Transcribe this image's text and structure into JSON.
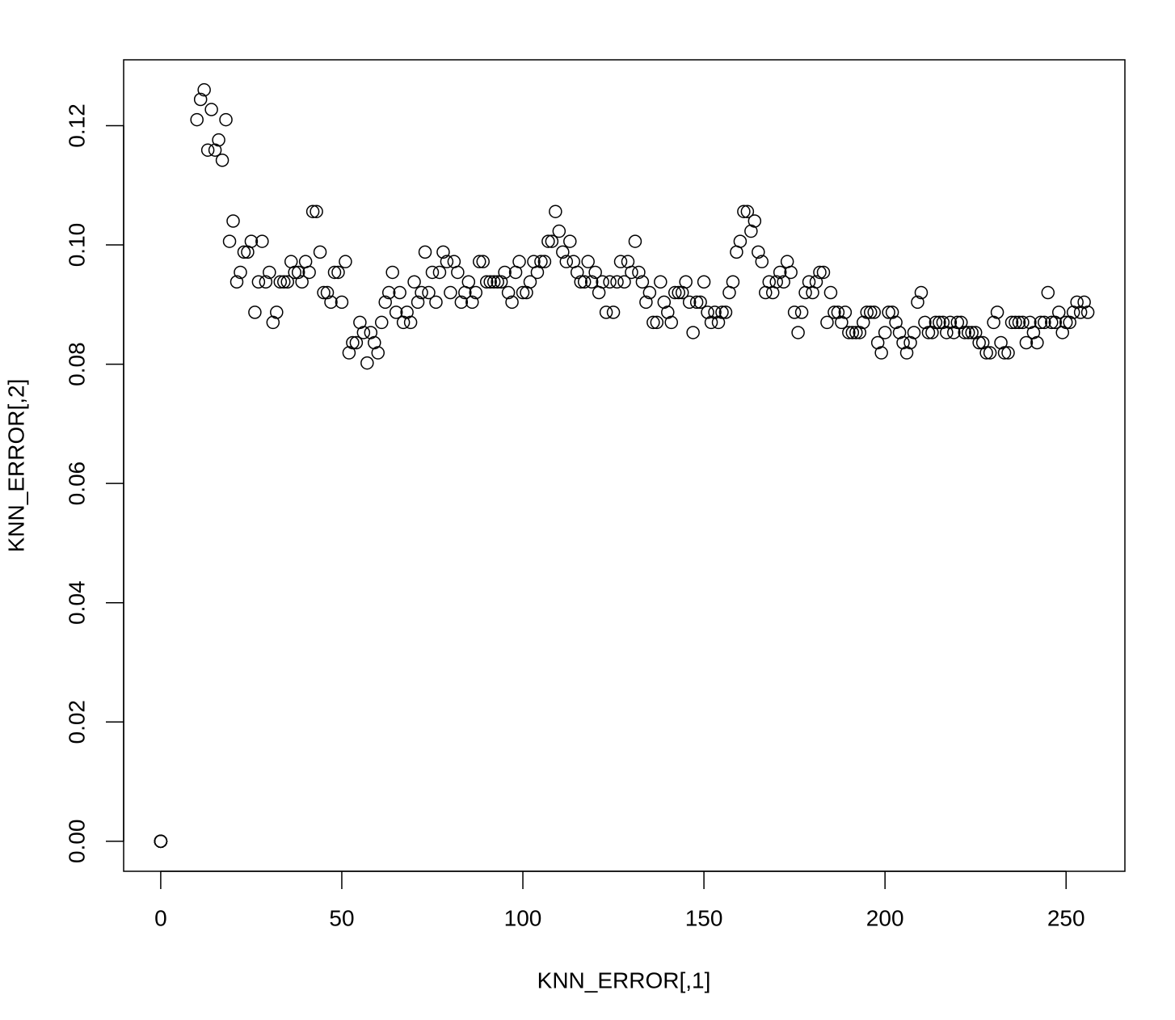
{
  "chart_data": {
    "type": "scatter",
    "x_label": "KNN_ERROR[,1]",
    "y_label": "KNN_ERROR[,2]",
    "color": "#000000",
    "marker": "open-circle",
    "xlim": [
      -10.24,
      266.24
    ],
    "ylim": [
      -0.00504,
      0.13104
    ],
    "xticks": [
      0,
      50,
      100,
      150,
      200,
      250
    ],
    "yticks": [
      {
        "value": 0,
        "label": "0.00"
      },
      0.02,
      0.04,
      0.06,
      0.08,
      {
        "value": 0.1,
        "label": "0.10"
      },
      0.12
    ],
    "x": [
      0,
      0,
      0,
      0,
      0,
      0,
      0,
      0,
      0,
      10,
      11,
      12,
      13,
      14,
      15,
      16,
      17,
      18,
      19,
      20,
      21,
      22,
      23,
      24,
      25,
      26,
      27,
      28,
      29,
      30,
      31,
      32,
      33,
      34,
      35,
      36,
      37,
      38,
      39,
      40,
      41,
      42,
      43,
      44,
      45,
      46,
      47,
      48,
      49,
      50,
      51,
      52,
      53,
      54,
      55,
      56,
      57,
      58,
      59,
      60,
      61,
      62,
      63,
      64,
      65,
      66,
      67,
      68,
      69,
      70,
      71,
      72,
      73,
      74,
      75,
      76,
      77,
      78,
      79,
      80,
      81,
      82,
      83,
      84,
      85,
      86,
      87,
      88,
      89,
      90,
      91,
      92,
      93,
      94,
      95,
      96,
      97,
      98,
      99,
      100,
      101,
      102,
      103,
      104,
      105,
      106,
      107,
      108,
      109,
      110,
      111,
      112,
      113,
      114,
      115,
      116,
      117,
      118,
      119,
      120,
      121,
      122,
      123,
      124,
      125,
      126,
      127,
      128,
      129,
      130,
      131,
      132,
      133,
      134,
      135,
      136,
      137,
      138,
      139,
      140,
      141,
      142,
      143,
      144,
      145,
      146,
      147,
      148,
      149,
      150,
      151,
      152,
      153,
      154,
      155,
      156,
      157,
      158,
      159,
      160,
      161,
      162,
      163,
      164,
      165,
      166,
      167,
      168,
      169,
      170,
      171,
      172,
      173,
      174,
      175,
      176,
      177,
      178,
      179,
      180,
      181,
      182,
      183,
      184,
      185,
      186,
      187,
      188,
      189,
      190,
      191,
      192,
      193,
      194,
      195,
      196,
      197,
      198,
      199,
      200,
      201,
      202,
      203,
      204,
      205,
      206,
      207,
      208,
      209,
      210,
      211,
      212,
      213,
      214,
      215,
      216,
      217,
      218,
      219,
      220,
      221,
      222,
      223,
      224,
      225,
      226,
      227,
      228,
      229,
      230,
      231,
      232,
      233,
      234,
      235,
      236,
      237,
      238,
      239,
      240,
      241,
      242,
      243,
      244,
      245,
      246,
      247,
      248,
      249,
      250,
      251,
      252,
      253,
      254,
      255,
      256
    ],
    "values": [
      0,
      0,
      0,
      0,
      0,
      0,
      0,
      0,
      0,
      0.121,
      0.1244,
      0.126,
      0.1159,
      0.1227,
      0.1159,
      0.1176,
      0.1142,
      0.121,
      0.1006,
      0.104,
      0.0938,
      0.0954,
      0.0988,
      0.0988,
      0.1006,
      0.0887,
      0.0938,
      0.1006,
      0.0938,
      0.0954,
      0.087,
      0.0887,
      0.0938,
      0.0938,
      0.0938,
      0.0972,
      0.0954,
      0.0954,
      0.0938,
      0.0972,
      0.0954,
      0.1056,
      0.1056,
      0.0988,
      0.092,
      0.092,
      0.0904,
      0.0954,
      0.0954,
      0.0904,
      0.0972,
      0.0819,
      0.0836,
      0.0836,
      0.087,
      0.0853,
      0.0802,
      0.0853,
      0.0836,
      0.0819,
      0.087,
      0.0904,
      0.092,
      0.0954,
      0.0887,
      0.092,
      0.087,
      0.0887,
      0.087,
      0.0938,
      0.0904,
      0.092,
      0.0988,
      0.092,
      0.0954,
      0.0904,
      0.0954,
      0.0988,
      0.0972,
      0.092,
      0.0972,
      0.0954,
      0.0904,
      0.092,
      0.0938,
      0.0904,
      0.092,
      0.0972,
      0.0972,
      0.0938,
      0.0938,
      0.0938,
      0.0938,
      0.0938,
      0.0954,
      0.092,
      0.0904,
      0.0954,
      0.0972,
      0.092,
      0.092,
      0.0938,
      0.0972,
      0.0954,
      0.0972,
      0.0972,
      0.1006,
      0.1006,
      0.1056,
      0.1023,
      0.0988,
      0.0972,
      0.1006,
      0.0972,
      0.0954,
      0.0938,
      0.0938,
      0.0972,
      0.0938,
      0.0954,
      0.092,
      0.0938,
      0.0887,
      0.0938,
      0.0887,
      0.0938,
      0.0972,
      0.0938,
      0.0972,
      0.0954,
      0.1006,
      0.0954,
      0.0938,
      0.0904,
      0.092,
      0.087,
      0.087,
      0.0938,
      0.0904,
      0.0887,
      0.087,
      0.092,
      0.092,
      0.092,
      0.0938,
      0.0904,
      0.0853,
      0.0904,
      0.0904,
      0.0938,
      0.0887,
      0.087,
      0.0887,
      0.087,
      0.0887,
      0.0887,
      0.092,
      0.0938,
      0.0988,
      0.1006,
      0.1056,
      0.1056,
      0.1023,
      0.104,
      0.0988,
      0.0972,
      0.092,
      0.0938,
      0.092,
      0.0938,
      0.0954,
      0.0938,
      0.0972,
      0.0954,
      0.0887,
      0.0853,
      0.0887,
      0.092,
      0.0938,
      0.092,
      0.0938,
      0.0954,
      0.0954,
      0.087,
      0.092,
      0.0887,
      0.0887,
      0.087,
      0.0887,
      0.0853,
      0.0853,
      0.0853,
      0.0853,
      0.087,
      0.0887,
      0.0887,
      0.0887,
      0.0836,
      0.0819,
      0.0853,
      0.0887,
      0.0887,
      0.087,
      0.0853,
      0.0836,
      0.0819,
      0.0836,
      0.0853,
      0.0904,
      0.092,
      0.087,
      0.0853,
      0.0853,
      0.087,
      0.087,
      0.087,
      0.0853,
      0.087,
      0.0853,
      0.087,
      0.087,
      0.0853,
      0.0853,
      0.0853,
      0.0853,
      0.0836,
      0.0836,
      0.0819,
      0.0819,
      0.087,
      0.0887,
      0.0836,
      0.0819,
      0.0819,
      0.087,
      0.087,
      0.087,
      0.087,
      0.0836,
      0.087,
      0.0853,
      0.0836,
      0.087,
      0.087,
      0.092,
      0.087,
      0.087,
      0.0887,
      0.0853,
      0.087,
      0.087,
      0.0887,
      0.0904,
      0.0887,
      0.0904,
      0.0887
    ]
  }
}
